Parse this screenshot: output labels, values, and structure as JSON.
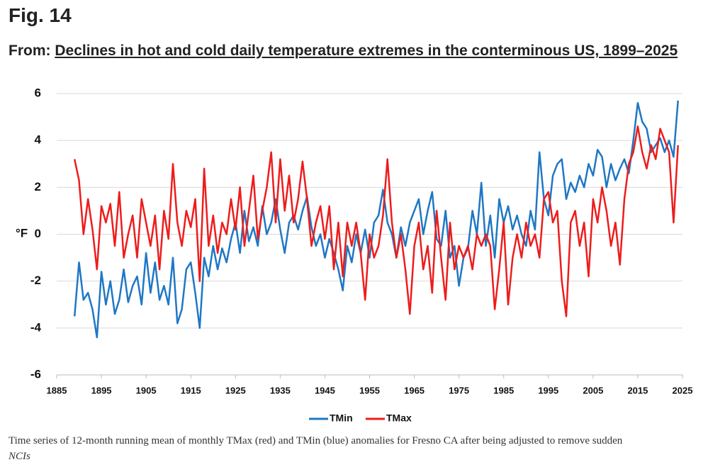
{
  "figure_label": "Fig. 14",
  "from_label": "From:",
  "article_title": "Declines in hot and cold daily temperature extremes in the conterminous US, 1899–2025",
  "caption": {
    "text": "Time series of 12-month running mean of monthly TMax (red) and TMin (blue) anomalies for Fresno CA after being adjusted to remove sudden",
    "italic": "NCIs"
  },
  "chart_data": {
    "type": "line",
    "y_label": "°F",
    "xlim": [
      1885,
      2025
    ],
    "xticks": [
      1885,
      1895,
      1905,
      1915,
      1925,
      1935,
      1945,
      1955,
      1965,
      1975,
      1985,
      1995,
      2005,
      2015,
      2025
    ],
    "ylim": [
      -6,
      6
    ],
    "yticks": [
      -6,
      -4,
      -2,
      0,
      2,
      4,
      6
    ],
    "grid": true,
    "x": [
      1889,
      1890,
      1891,
      1892,
      1893,
      1894,
      1895,
      1896,
      1897,
      1898,
      1899,
      1900,
      1901,
      1902,
      1903,
      1904,
      1905,
      1906,
      1907,
      1908,
      1909,
      1910,
      1911,
      1912,
      1913,
      1914,
      1915,
      1916,
      1917,
      1918,
      1919,
      1920,
      1921,
      1922,
      1923,
      1924,
      1925,
      1926,
      1927,
      1928,
      1929,
      1930,
      1931,
      1932,
      1933,
      1934,
      1935,
      1936,
      1937,
      1938,
      1939,
      1940,
      1941,
      1942,
      1943,
      1944,
      1945,
      1946,
      1947,
      1948,
      1949,
      1950,
      1951,
      1952,
      1953,
      1954,
      1955,
      1956,
      1957,
      1958,
      1959,
      1960,
      1961,
      1962,
      1963,
      1964,
      1965,
      1966,
      1967,
      1968,
      1969,
      1970,
      1971,
      1972,
      1973,
      1974,
      1975,
      1976,
      1977,
      1978,
      1979,
      1980,
      1981,
      1982,
      1983,
      1984,
      1985,
      1986,
      1987,
      1988,
      1989,
      1990,
      1991,
      1992,
      1993,
      1994,
      1995,
      1996,
      1997,
      1998,
      1999,
      2000,
      2001,
      2002,
      2003,
      2004,
      2005,
      2006,
      2007,
      2008,
      2009,
      2010,
      2011,
      2012,
      2013,
      2014,
      2015,
      2016,
      2017,
      2018,
      2019,
      2020,
      2021,
      2022,
      2023,
      2024
    ],
    "series": [
      {
        "name": "TMin",
        "color": "#1f77c4",
        "values": [
          -3.5,
          -1.2,
          -2.8,
          -2.5,
          -3.2,
          -4.4,
          -1.6,
          -3.0,
          -2.0,
          -3.4,
          -2.8,
          -1.5,
          -2.9,
          -2.2,
          -1.8,
          -3.0,
          -0.8,
          -2.5,
          -1.2,
          -2.8,
          -2.2,
          -3.0,
          -1.0,
          -3.8,
          -3.2,
          -1.5,
          -1.2,
          -2.5,
          -4.0,
          -1.0,
          -1.8,
          -0.5,
          -1.5,
          -0.6,
          -1.2,
          -0.2,
          0.5,
          -0.8,
          1.0,
          -0.3,
          0.3,
          -0.5,
          1.2,
          0.0,
          0.5,
          1.5,
          0.2,
          -0.8,
          0.5,
          0.8,
          0.2,
          1.0,
          1.6,
          0.3,
          -0.5,
          0.0,
          -1.0,
          -0.2,
          -0.8,
          -1.5,
          -2.4,
          -0.5,
          -1.2,
          0.0,
          -0.8,
          0.2,
          -1.0,
          0.5,
          0.8,
          1.9,
          0.5,
          0.0,
          -1.0,
          0.3,
          -0.5,
          0.5,
          1.0,
          1.5,
          0.0,
          1.0,
          1.8,
          -0.2,
          -0.5,
          1.0,
          -1.0,
          -0.5,
          -2.2,
          -1.0,
          -0.6,
          1.0,
          0.0,
          2.2,
          -0.5,
          0.8,
          -1.0,
          1.5,
          0.5,
          1.2,
          0.2,
          0.8,
          0.0,
          -0.5,
          1.0,
          0.2,
          3.5,
          1.5,
          0.8,
          2.5,
          3.0,
          3.2,
          1.5,
          2.2,
          1.8,
          2.5,
          2.0,
          3.0,
          2.5,
          3.6,
          3.3,
          2.0,
          3.0,
          2.3,
          2.8,
          3.2,
          2.6,
          4.0,
          5.6,
          4.8,
          4.5,
          3.5,
          3.8,
          4.1,
          3.5,
          4.0,
          3.3,
          5.7
        ]
      },
      {
        "name": "TMax",
        "color": "#ee1c1c",
        "values": [
          3.2,
          2.3,
          0.0,
          1.5,
          0.2,
          -1.5,
          1.2,
          0.5,
          1.3,
          -0.5,
          1.8,
          -1.0,
          0.0,
          0.8,
          -1.0,
          1.5,
          0.5,
          -0.5,
          0.8,
          -1.5,
          1.0,
          -0.2,
          3.0,
          0.5,
          -0.5,
          1.0,
          0.3,
          1.5,
          -2.0,
          2.8,
          -0.5,
          0.8,
          -0.8,
          0.5,
          0.0,
          1.5,
          0.2,
          2.0,
          -0.5,
          1.0,
          2.5,
          -0.2,
          1.0,
          2.0,
          3.5,
          0.5,
          3.2,
          1.0,
          2.5,
          0.5,
          1.5,
          3.1,
          1.5,
          -0.5,
          0.5,
          1.2,
          -0.2,
          1.2,
          -1.5,
          0.5,
          -1.8,
          0.5,
          -0.5,
          0.5,
          -0.8,
          -2.8,
          0.0,
          -1.0,
          -0.5,
          0.8,
          3.2,
          0.5,
          -1.0,
          0.0,
          -1.5,
          -3.4,
          -0.5,
          0.5,
          -1.5,
          -0.5,
          -2.5,
          1.0,
          -1.0,
          -2.8,
          0.5,
          -1.5,
          -0.5,
          -1.0,
          -0.5,
          -1.5,
          0.0,
          -0.5,
          0.0,
          -0.5,
          -3.2,
          -1.5,
          0.5,
          -3.0,
          -1.0,
          0.0,
          -1.0,
          0.5,
          -0.5,
          0.0,
          -1.0,
          1.5,
          1.8,
          0.5,
          1.0,
          -2.0,
          -3.5,
          0.5,
          1.0,
          -0.5,
          0.5,
          -1.8,
          1.5,
          0.5,
          2.0,
          1.0,
          -0.5,
          0.5,
          -1.3,
          1.5,
          3.0,
          3.5,
          4.6,
          3.5,
          2.8,
          3.8,
          3.2,
          4.5,
          4.0,
          3.5,
          0.5,
          3.8
        ]
      }
    ]
  }
}
